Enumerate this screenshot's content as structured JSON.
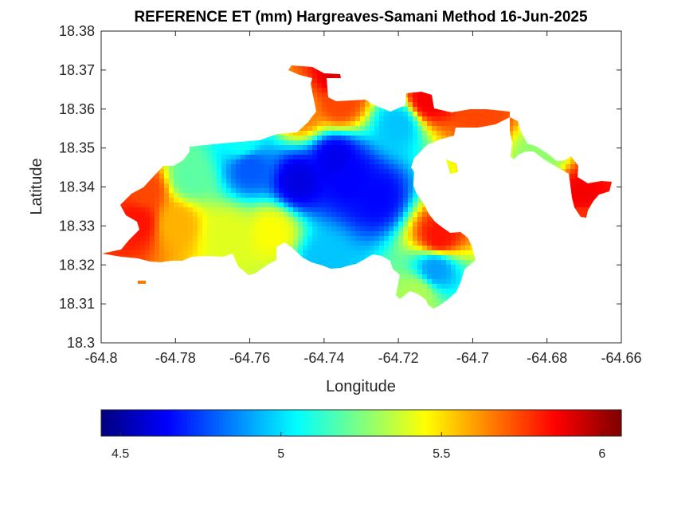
{
  "chart_data": {
    "type": "heatmap",
    "title": "REFERENCE ET (mm) Hargreaves-Samani Method  16-Jun-2025",
    "xlabel": "Longitude",
    "ylabel": "Latitude",
    "xlim": [
      -64.8,
      -64.66
    ],
    "ylim": [
      18.3,
      18.38
    ],
    "x_ticks": [
      -64.8,
      -64.78,
      -64.76,
      -64.74,
      -64.72,
      -64.7,
      -64.68,
      -64.66
    ],
    "x_tick_labels": [
      "-64.8",
      "-64.78",
      "-64.76",
      "-64.74",
      "-64.72",
      "-64.7",
      "-64.68",
      "-64.66"
    ],
    "y_ticks": [
      18.3,
      18.31,
      18.32,
      18.33,
      18.34,
      18.35,
      18.36,
      18.37,
      18.38
    ],
    "y_tick_labels": [
      "18.3",
      "18.31",
      "18.32",
      "18.33",
      "18.34",
      "18.35",
      "18.36",
      "18.37",
      "18.38"
    ],
    "colormap": "jet",
    "clim": [
      4.44,
      6.06
    ],
    "colorbar": {
      "location": "bottom",
      "ticks": [
        4.5,
        5,
        5.5,
        6
      ],
      "tick_labels": [
        "4.5",
        "5",
        "5.5",
        "6"
      ]
    },
    "grid": false,
    "legend": "none",
    "value_field": {
      "baseline": 5.15,
      "centers": [
        {
          "lon": -64.747,
          "lat": 18.3415,
          "value": 4.5
        },
        {
          "lon": -64.737,
          "lat": 18.3475,
          "value": 4.52
        },
        {
          "lon": -64.726,
          "lat": 18.3375,
          "value": 4.56
        },
        {
          "lon": -64.76,
          "lat": 18.345,
          "value": 4.72
        },
        {
          "lon": -64.733,
          "lat": 18.342,
          "value": 4.55
        },
        {
          "lon": -64.72,
          "lat": 18.356,
          "value": 4.92
        },
        {
          "lon": -64.71,
          "lat": 18.319,
          "value": 4.85
        },
        {
          "lon": -64.74,
          "lat": 18.321,
          "value": 4.92
        },
        {
          "lon": -64.79,
          "lat": 18.331,
          "value": 5.95
        },
        {
          "lon": -64.788,
          "lat": 18.339,
          "value": 5.85
        },
        {
          "lon": -64.78,
          "lat": 18.3305,
          "value": 5.65
        },
        {
          "lon": -64.754,
          "lat": 18.3285,
          "value": 5.5
        },
        {
          "lon": -64.766,
          "lat": 18.3275,
          "value": 5.45
        },
        {
          "lon": -64.736,
          "lat": 18.368,
          "value": 6.05
        },
        {
          "lon": -64.736,
          "lat": 18.3615,
          "value": 5.85
        },
        {
          "lon": -64.746,
          "lat": 18.3595,
          "value": 5.75
        },
        {
          "lon": -64.712,
          "lat": 18.3625,
          "value": 6.0
        },
        {
          "lon": -64.709,
          "lat": 18.327,
          "value": 5.95
        },
        {
          "lon": -64.697,
          "lat": 18.3585,
          "value": 5.85
        },
        {
          "lon": -64.671,
          "lat": 18.3375,
          "value": 6.0
        },
        {
          "lon": -64.671,
          "lat": 18.3325,
          "value": 5.9
        },
        {
          "lon": -64.682,
          "lat": 18.3475,
          "value": 5.3
        },
        {
          "lon": -64.715,
          "lat": 18.3125,
          "value": 5.35
        },
        {
          "lon": -64.776,
          "lat": 18.3425,
          "value": 5.2
        },
        {
          "lon": -64.762,
          "lat": 18.3515,
          "value": 5.05
        }
      ]
    }
  }
}
